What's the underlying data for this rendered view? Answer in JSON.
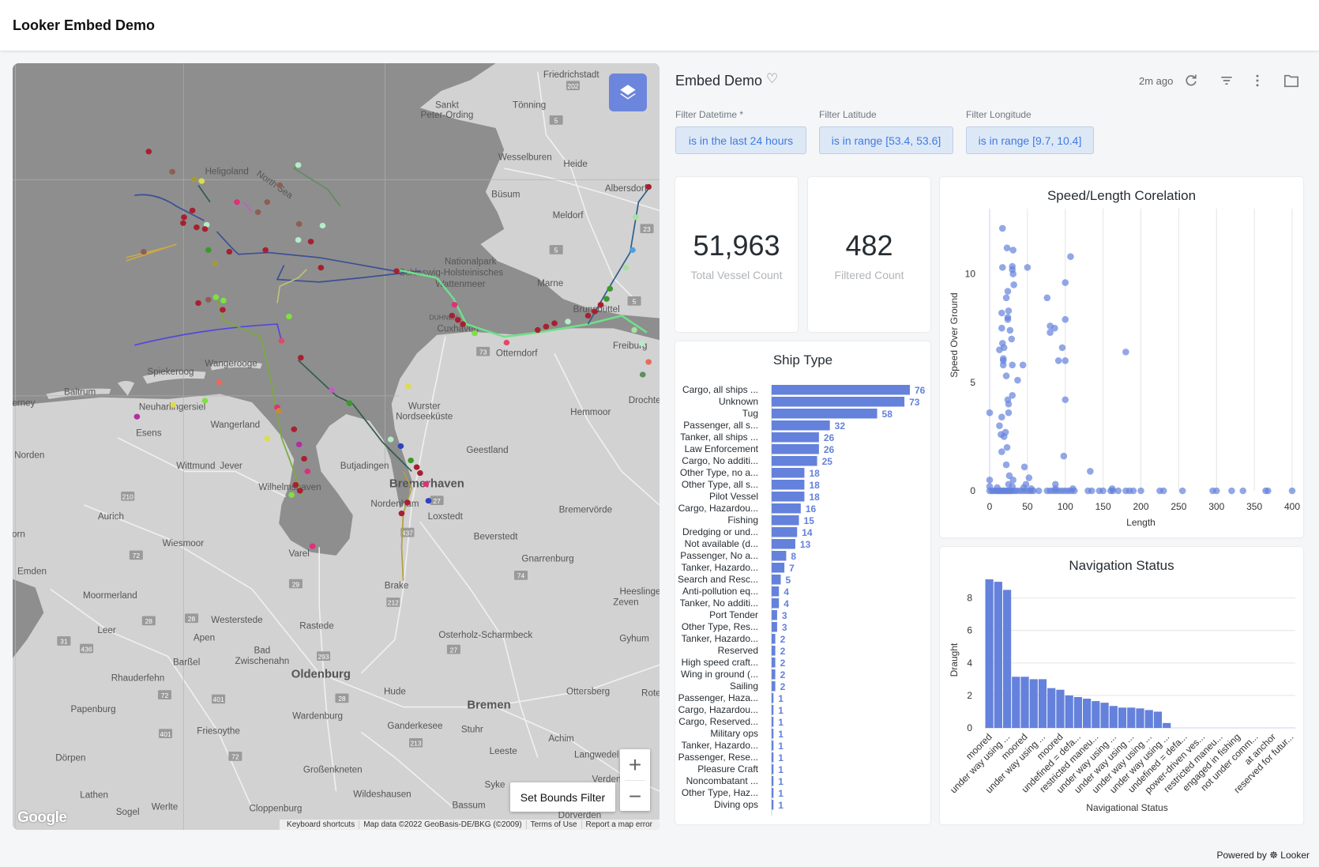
{
  "header": {
    "title": "Looker Embed Demo"
  },
  "dashboard": {
    "title": "Embed Demo",
    "updated": "2m ago",
    "icons": [
      "heart-icon",
      "refresh-icon",
      "filter-icon",
      "more-vert-icon",
      "folder-icon"
    ]
  },
  "filters": [
    {
      "label": "Filter Datetime *",
      "value": "is in the last 24 hours"
    },
    {
      "label": "Filter Latitude",
      "value": "is in range [53.4, 53.6]"
    },
    {
      "label": "Filter Longitude",
      "value": "is in range [9.7, 10.4]"
    }
  ],
  "kpis": [
    {
      "value": "51,963",
      "label": "Total Vessel Count"
    },
    {
      "value": "482",
      "label": "Filtered Count"
    }
  ],
  "map": {
    "set_bounds_label": "Set Bounds Filter",
    "zoom_in": "+",
    "zoom_out": "−",
    "google": "Google",
    "attribution": [
      "Keyboard shortcuts",
      "Map data ©2022 GeoBasis-DE/BKG (©2009)",
      "Terms of Use",
      "Report a map error"
    ],
    "labels": [
      "Friedrichstadt",
      "Sankt",
      "Peter-Ording",
      "Tönning",
      "Wesselburen",
      "Heide",
      "Albersdorf",
      "Büsum",
      "Meldorf",
      "Nationalpark",
      "Schleswig-Holsteinisches",
      "Wattenmeer",
      "Marne",
      "DUHNEN",
      "Cuxhaven",
      "Brunsbüttel",
      "Otterndorf",
      "Freiburg",
      "Drochtersen",
      "Heligoland",
      "North Sea",
      "Wangerooge",
      "Spiekeroog",
      "Baltrum",
      "Neuharlingersiel",
      "Esens",
      "Wangerland",
      "Norden",
      "Wittmund",
      "Jever",
      "Wurster",
      "Nordseeküste",
      "Hemmoor",
      "Geestland",
      "Butjadingen",
      "Bremerhaven",
      "Wilhelmshaven",
      "Nordenham",
      "Loxstedt",
      "Bremervörde",
      "Beverstedt",
      "Aurich",
      "Wiesmoor",
      "Varel",
      "Gnarrenburg",
      "Emden",
      "Moormerland",
      "Brake",
      "Heeslingen",
      "Zeven",
      "Westerstede",
      "Rastede",
      "Osterholz-Scharmbeck",
      "Leer",
      "Apen",
      "Bad",
      "Zwischenahn",
      "Gyhum",
      "Barßel",
      "Oldenburg",
      "Rhauderfehn",
      "Hude",
      "Ottersberg",
      "Rote",
      "Bremen",
      "Papenburg",
      "Wardenburg",
      "Ganderkesee",
      "Stuhr",
      "Friesoythe",
      "Achim",
      "Leeste",
      "Dörpen",
      "Großenkneten",
      "Langwedel",
      "Verden",
      "Wildeshausen",
      "Syke",
      "Lathen",
      "Werlte",
      "Sogel",
      "Cloppenburg",
      "Bassum",
      "Dörverden",
      "erney",
      "orn"
    ],
    "road_shields": [
      "202",
      "5",
      "5",
      "23",
      "5",
      "73",
      "27",
      "437",
      "212",
      "29",
      "74",
      "210",
      "72",
      "28",
      "31",
      "436",
      "293",
      "28",
      "401",
      "72",
      "28",
      "401",
      "213",
      "27",
      "72"
    ]
  },
  "footer": {
    "text": "Powered by",
    "brand": "Looker"
  },
  "chart_data": [
    {
      "type": "bar",
      "orientation": "horizontal",
      "title": "Ship Type",
      "color": "#6481dc",
      "categories": [
        "Cargo, all ships ...",
        "Unknown",
        "Tug",
        "Passenger, all s...",
        "Tanker, all ships ...",
        "Law Enforcement",
        "Cargo, No additi...",
        "Other Type, no a...",
        "Other Type, all s...",
        "Pilot Vessel",
        "Cargo, Hazardou...",
        "Fishing",
        "Dredging or und...",
        "Not available (d...",
        "Passenger, No a...",
        "Tanker, Hazardo...",
        "Search and Resc...",
        "Anti-pollution eq...",
        "Tanker, No additi...",
        "Port Tender",
        "Other Type, Res...",
        "Tanker, Hazardo...",
        "Reserved",
        "High speed craft...",
        "Wing in ground (...",
        "Sailing",
        "Passenger, Haza...",
        "Cargo, Hazardou...",
        "Cargo, Reserved...",
        "Military ops",
        "Tanker, Hazardo...",
        "Passenger, Rese...",
        "Pleasure Craft",
        "Noncombatant ...",
        "Other Type, Haz...",
        "Diving ops"
      ],
      "values": [
        76,
        73,
        58,
        32,
        26,
        26,
        25,
        18,
        18,
        18,
        16,
        15,
        14,
        13,
        8,
        7,
        5,
        4,
        4,
        3,
        3,
        2,
        2,
        2,
        2,
        2,
        1,
        1,
        1,
        1,
        1,
        1,
        1,
        1,
        1,
        1
      ],
      "xlim": [
        0,
        76
      ]
    },
    {
      "type": "scatter",
      "title": "Speed/Length Corelation",
      "xlabel": "Length",
      "ylabel": "Speed Over Ground",
      "xlim": [
        0,
        400
      ],
      "ylim": [
        0,
        12.5
      ],
      "xticks": [
        0,
        50,
        100,
        150,
        200,
        250,
        300,
        350,
        400
      ],
      "yticks": [
        0,
        5,
        10
      ],
      "color": "#6481dc",
      "points": [
        [
          17,
          12.1
        ],
        [
          23,
          11.2
        ],
        [
          31,
          11.1
        ],
        [
          107,
          10.8
        ],
        [
          17,
          10.3
        ],
        [
          30,
          10.35
        ],
        [
          30,
          10.2
        ],
        [
          31,
          10.0
        ],
        [
          50,
          10.3
        ],
        [
          100,
          9.6
        ],
        [
          32,
          9.5
        ],
        [
          24,
          9.2
        ],
        [
          22,
          8.9
        ],
        [
          76,
          8.9
        ],
        [
          25,
          8.3
        ],
        [
          16,
          8.2
        ],
        [
          24,
          8.0
        ],
        [
          24,
          7.9
        ],
        [
          100,
          7.9
        ],
        [
          80,
          7.6
        ],
        [
          86,
          7.5
        ],
        [
          16,
          7.5
        ],
        [
          27,
          7.4
        ],
        [
          80,
          7.3
        ],
        [
          29,
          7.0
        ],
        [
          17,
          6.8
        ],
        [
          96,
          6.6
        ],
        [
          19,
          6.6
        ],
        [
          13,
          6.5
        ],
        [
          180,
          6.4
        ],
        [
          18,
          6.1
        ],
        [
          18,
          6.0
        ],
        [
          91,
          6.0
        ],
        [
          100,
          6.0
        ],
        [
          18,
          5.8
        ],
        [
          30,
          5.8
        ],
        [
          44,
          5.8
        ],
        [
          22,
          5.3
        ],
        [
          37,
          5.1
        ],
        [
          100,
          4.2
        ],
        [
          30,
          4.4
        ],
        [
          24,
          4.2
        ],
        [
          25,
          4.0
        ],
        [
          0,
          3.6
        ],
        [
          25,
          3.6
        ],
        [
          16,
          3.4
        ],
        [
          13,
          3.0
        ],
        [
          15,
          2.6
        ],
        [
          21,
          2.7
        ],
        [
          19,
          2.5
        ],
        [
          23,
          2.0
        ],
        [
          16,
          1.8
        ],
        [
          98,
          1.6
        ],
        [
          22,
          1.2
        ],
        [
          46,
          1.1
        ],
        [
          133,
          0.9
        ],
        [
          26,
          0.7
        ],
        [
          52,
          0.6
        ],
        [
          0,
          0.5
        ],
        [
          31,
          0.5
        ],
        [
          87,
          0.3
        ],
        [
          48,
          0.3
        ],
        [
          0,
          0.2
        ],
        [
          10,
          0.15
        ],
        [
          25,
          0.3
        ],
        [
          30,
          0.2
        ],
        [
          45,
          0.15
        ],
        [
          55,
          0.1
        ],
        [
          87,
          0.1
        ],
        [
          110,
          0.1
        ],
        [
          162,
          0.1
        ],
        [
          0,
          0
        ],
        [
          3,
          0
        ],
        [
          5,
          0
        ],
        [
          8,
          0
        ],
        [
          10,
          0
        ],
        [
          12,
          0
        ],
        [
          14,
          0
        ],
        [
          16,
          0
        ],
        [
          18,
          0
        ],
        [
          20,
          0
        ],
        [
          22,
          0
        ],
        [
          24,
          0
        ],
        [
          26,
          0
        ],
        [
          28,
          0
        ],
        [
          30,
          0
        ],
        [
          33,
          0
        ],
        [
          36,
          0
        ],
        [
          40,
          0
        ],
        [
          44,
          0
        ],
        [
          48,
          0
        ],
        [
          52,
          0
        ],
        [
          55,
          0
        ],
        [
          58,
          0
        ],
        [
          65,
          0
        ],
        [
          76,
          0
        ],
        [
          80,
          0
        ],
        [
          84,
          0
        ],
        [
          88,
          0
        ],
        [
          92,
          0
        ],
        [
          96,
          0
        ],
        [
          100,
          0
        ],
        [
          104,
          0
        ],
        [
          108,
          0
        ],
        [
          112,
          0
        ],
        [
          130,
          0
        ],
        [
          135,
          0
        ],
        [
          145,
          0
        ],
        [
          150,
          0
        ],
        [
          160,
          0
        ],
        [
          163,
          0
        ],
        [
          170,
          0
        ],
        [
          180,
          0
        ],
        [
          185,
          0
        ],
        [
          190,
          0
        ],
        [
          200,
          0
        ],
        [
          225,
          0
        ],
        [
          230,
          0
        ],
        [
          255,
          0
        ],
        [
          295,
          0
        ],
        [
          300,
          0
        ],
        [
          320,
          0
        ],
        [
          335,
          0
        ],
        [
          365,
          0
        ],
        [
          368,
          0
        ],
        [
          400,
          0
        ]
      ]
    },
    {
      "type": "bar",
      "title": "Navigation Status",
      "xlabel": "Navigational Status",
      "ylabel": "Draught",
      "ylim": [
        0,
        9.2
      ],
      "yticks": [
        0,
        2,
        4,
        6,
        8
      ],
      "color": "#6481dc",
      "values": [
        9.15,
        9.0,
        8.5,
        3.15,
        3.15,
        3.0,
        3.0,
        2.45,
        2.35,
        2.0,
        1.9,
        1.8,
        1.65,
        1.55,
        1.35,
        1.25,
        1.25,
        1.2,
        1.1,
        1.0,
        0.3,
        0,
        0,
        0,
        0,
        0,
        0,
        0,
        0,
        0,
        0,
        0,
        0,
        0,
        0
      ],
      "tick_labels": [
        "moored",
        "under way using ...",
        "moored",
        "under way using ...",
        "moored",
        "undefined = defa...",
        "restricted maneu...",
        "under way using ...",
        "under way using ...",
        "under way using ...",
        "under way using ...",
        "undefined = defa...",
        "power-driven ves...",
        "restricted maneu...",
        "engaged in fishing",
        "not under comm...",
        "at anchor",
        "reserved for futur..."
      ]
    }
  ]
}
